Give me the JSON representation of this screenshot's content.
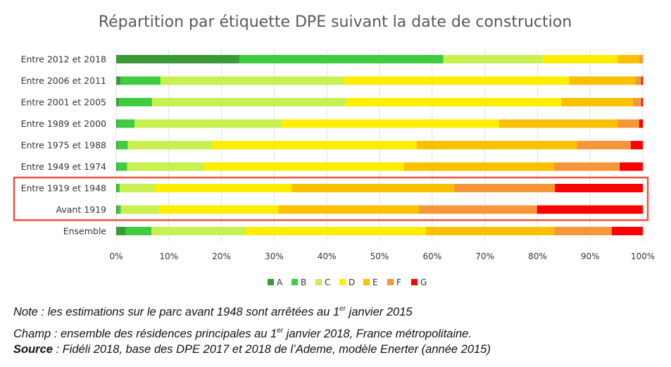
{
  "chart_data": {
    "type": "bar",
    "orientation": "horizontal",
    "stacked": "percent",
    "title": "Répartition par étiquette DPE suivant la date de construction",
    "categories": [
      "Entre 2012 et 2018",
      "Entre 2006 et 2011",
      "Entre 2001 et 2005",
      "Entre 1989 et 2000",
      "Entre 1975 et 1988",
      "Entre 1949 et 1974",
      "Entre 1919 et 1948",
      "Avant 1919",
      "Ensemble"
    ],
    "series": [
      {
        "name": "A",
        "color": "#3a9a3a",
        "values": [
          23.4,
          0.8,
          0.5,
          0.2,
          0.2,
          0.2,
          0.2,
          0.3,
          1.8
        ]
      },
      {
        "name": "B",
        "color": "#40cc40",
        "values": [
          38.7,
          7.6,
          6.3,
          3.3,
          2.0,
          1.9,
          0.5,
          0.6,
          4.9
        ]
      },
      {
        "name": "C",
        "color": "#c8f050",
        "values": [
          19.0,
          34.9,
          36.9,
          27.9,
          16.0,
          14.6,
          6.7,
          7.2,
          17.9
        ]
      },
      {
        "name": "D",
        "color": "#ffee00",
        "values": [
          14.1,
          42.7,
          40.8,
          41.3,
          38.9,
          37.9,
          25.9,
          22.7,
          34.2
        ]
      },
      {
        "name": "E",
        "color": "#fbc100",
        "values": [
          4.2,
          12.6,
          13.6,
          22.5,
          30.4,
          28.5,
          30.9,
          26.7,
          24.4
        ]
      },
      {
        "name": "F",
        "color": "#f59638",
        "values": [
          0.6,
          1.1,
          1.6,
          4.1,
          10.2,
          12.5,
          19.1,
          22.4,
          10.9
        ]
      },
      {
        "name": "G",
        "color": "#ff0000",
        "values": [
          0.0,
          0.3,
          0.3,
          0.7,
          2.3,
          4.4,
          16.7,
          20.1,
          5.9
        ]
      }
    ],
    "xlim": [
      0,
      100
    ],
    "xticks": [
      "0%",
      "10%",
      "20%",
      "30%",
      "40%",
      "50%",
      "60%",
      "70%",
      "80%",
      "90%",
      "100%"
    ],
    "legend": "bottom",
    "grid": "vertical",
    "highlighted_categories": [
      "Entre 1919 et 1948",
      "Avant 1919"
    ],
    "highlight_color": "#e8553e"
  },
  "notes": {
    "note_pre": "Note : les estimations sur le parc avant 1948 sont arrêtées au 1",
    "note_sup": "er",
    "note_post": " janvier 2015",
    "champ_pre": "Champ : ensemble des résidences principales au 1",
    "champ_sup": "er",
    "champ_post": " janvier 2018, France métropolitaine.",
    "source_label": "Source",
    "source_text": " : Fidéli 2018, base des DPE 2017 et 2018 de l’Ademe, modèle Enerter (année 2015)"
  }
}
